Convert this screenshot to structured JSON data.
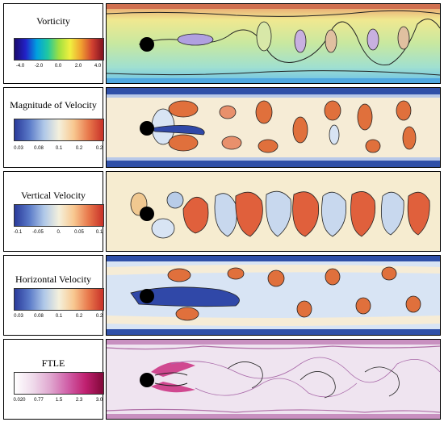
{
  "panels": [
    {
      "id": "vorticity",
      "title": "Vorticity",
      "ticks": [
        "-4.0",
        "-2.0",
        "0.0",
        "2.0",
        "4.0"
      ],
      "colormap": [
        "#1a0a6e",
        "#2222c8",
        "#00a0e0",
        "#20c8a0",
        "#a0e040",
        "#f0f040",
        "#f0a030",
        "#d04030",
        "#801020"
      ]
    },
    {
      "id": "magnitude-velocity",
      "title": "Magnitude of Velocity",
      "ticks": [
        "0.03",
        "0.08",
        "0.1",
        "0.2",
        "0.2"
      ],
      "colormap": [
        "#2a3a9a",
        "#5a7ac8",
        "#b0c8e8",
        "#f4f0dc",
        "#f8c890",
        "#e8784c",
        "#c83028"
      ]
    },
    {
      "id": "vertical-velocity",
      "title": "Vertical Velocity",
      "ticks": [
        "-0.1",
        "-0.05",
        "0.",
        "0.05",
        "0.1"
      ],
      "colormap": [
        "#2a3a9a",
        "#5a7ac8",
        "#b0c8e8",
        "#f4f0dc",
        "#f8c890",
        "#e8784c",
        "#c83028"
      ]
    },
    {
      "id": "horizontal-velocity",
      "title": "Horizontal Velocity",
      "ticks": [
        "0.03",
        "0.08",
        "0.1",
        "0.2",
        "0.2"
      ],
      "colormap": [
        "#2a3a9a",
        "#5a7ac8",
        "#b0c8e8",
        "#f4f0dc",
        "#f8c890",
        "#e8784c",
        "#c83028"
      ]
    },
    {
      "id": "ftle",
      "title": "FTLE",
      "ticks": [
        "0.020",
        "0.77",
        "1.5",
        "2.3",
        "3.0"
      ],
      "colormap": [
        "#ffffff",
        "#f0dcec",
        "#e0a8d0",
        "#d060a8",
        "#c02070",
        "#800838"
      ]
    }
  ]
}
